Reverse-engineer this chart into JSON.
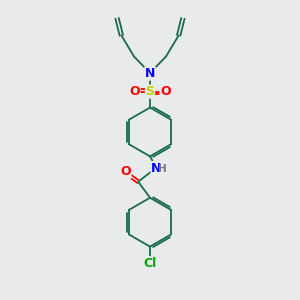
{
  "background_color": "#e8eaec",
  "atom_colors": {
    "N": "#0000ff",
    "O": "#ff0000",
    "S": "#cccc00",
    "Cl": "#00aa00",
    "H": "#777777",
    "C": "#1a6b4a"
  },
  "bond_color": "#1a6b4a",
  "figsize": [
    3.0,
    3.0
  ],
  "dpi": 100
}
